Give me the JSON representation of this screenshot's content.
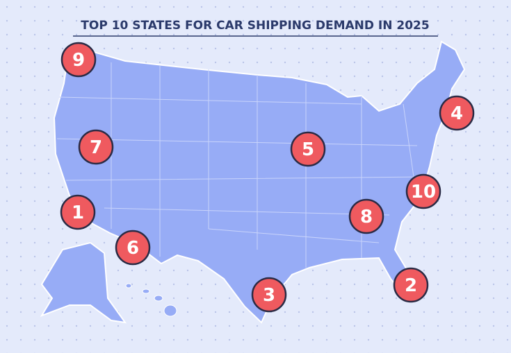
{
  "title": "TOP 10 STATES FOR CAR SHIPPING DEMAND IN 2025",
  "markers": [
    {
      "rank": 9
    },
    {
      "rank": 4
    },
    {
      "rank": 7
    },
    {
      "rank": 5
    },
    {
      "rank": 10
    },
    {
      "rank": 1
    },
    {
      "rank": 8
    },
    {
      "rank": 6
    },
    {
      "rank": 2
    },
    {
      "rank": 3
    }
  ]
}
